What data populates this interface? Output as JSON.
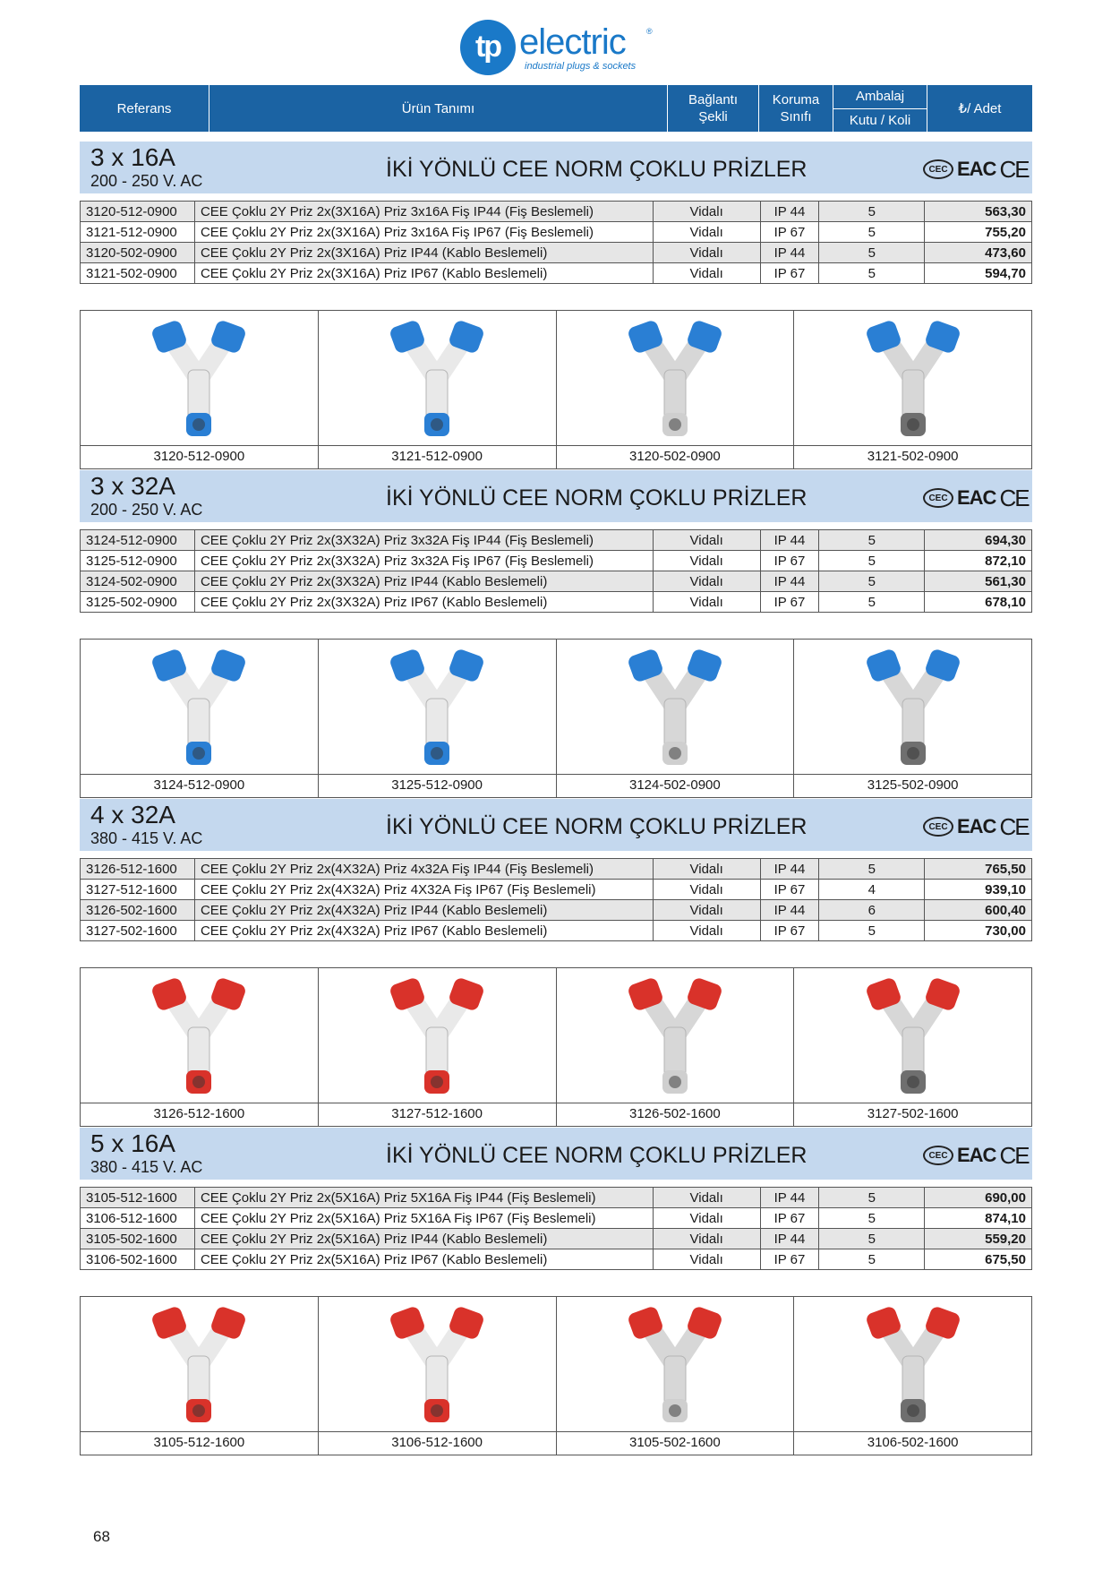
{
  "logo": {
    "mark": "tp",
    "word": "electric",
    "reg": "®",
    "tagline": "industrial plugs & sockets"
  },
  "header": {
    "referans": "Referans",
    "urun_tanimi": "Ürün Tanımı",
    "baglanti": "Bağlantı Şekli",
    "koruma": "Koruma Sınıfı",
    "ambalaj": "Ambalaj",
    "kutu_koli": "Kutu / Koli",
    "adet": "₺/ Adet"
  },
  "colors": {
    "header_blue": "#1b63a3",
    "band_blue": "#c4d8ee",
    "plug_blue": "#2a7fd4",
    "plug_red": "#d9322a"
  },
  "certs": {
    "cec": "CEC",
    "eac": "EAC",
    "ce": "CE"
  },
  "sections": [
    {
      "amp": "3 x 16A",
      "voltage": "200 - 250 V. AC",
      "title": "İKİ YÖNLÜ CEE NORM ÇOKLU PRİZLER",
      "color": "blue",
      "rows": [
        {
          "ref": "3120-512-0900",
          "desc": "CEE Çoklu 2Y Priz 2x(3X16A) Priz 3x16A Fiş IP44 (Fiş Beslemeli)",
          "baglanti": "Vidalı",
          "koruma": "IP 44",
          "ambalaj": "5",
          "price": "563,30"
        },
        {
          "ref": "3121-512-0900",
          "desc": "CEE Çoklu 2Y Priz 2x(3X16A) Priz 3x16A Fiş IP67 (Fiş Beslemeli)",
          "baglanti": "Vidalı",
          "koruma": "IP 67",
          "ambalaj": "5",
          "price": "755,20"
        },
        {
          "ref": "3120-502-0900",
          "desc": "CEE Çoklu 2Y Priz 2x(3X16A) Priz IP44 (Kablo Beslemeli)",
          "baglanti": "Vidalı",
          "koruma": "IP 44",
          "ambalaj": "5",
          "price": "473,60"
        },
        {
          "ref": "3121-502-0900",
          "desc": "CEE Çoklu 2Y Priz 2x(3X16A) Priz IP67 (Kablo Beslemeli)",
          "baglanti": "Vidalı",
          "koruma": "IP 67",
          "ambalaj": "5",
          "price": "594,70"
        }
      ],
      "images": [
        "3120-512-0900",
        "3121-512-0900",
        "3120-502-0900",
        "3121-502-0900"
      ]
    },
    {
      "amp": "3 x 32A",
      "voltage": "200 - 250 V. AC",
      "title": "İKİ YÖNLÜ CEE NORM ÇOKLU PRİZLER",
      "color": "blue",
      "rows": [
        {
          "ref": "3124-512-0900",
          "desc": "CEE Çoklu 2Y Priz 2x(3X32A) Priz 3x32A Fiş IP44 (Fiş Beslemeli)",
          "baglanti": "Vidalı",
          "koruma": "IP 44",
          "ambalaj": "5",
          "price": "694,30"
        },
        {
          "ref": "3125-512-0900",
          "desc": "CEE Çoklu 2Y Priz 2x(3X32A) Priz 3x32A Fiş IP67 (Fiş Beslemeli)",
          "baglanti": "Vidalı",
          "koruma": "IP 67",
          "ambalaj": "5",
          "price": "872,10"
        },
        {
          "ref": "3124-502-0900",
          "desc": "CEE Çoklu 2Y Priz 2x(3X32A) Priz IP44 (Kablo Beslemeli)",
          "baglanti": "Vidalı",
          "koruma": "IP 44",
          "ambalaj": "5",
          "price": "561,30"
        },
        {
          "ref": "3125-502-0900",
          "desc": "CEE Çoklu 2Y Priz 2x(3X32A) Priz IP67 (Kablo Beslemeli)",
          "baglanti": "Vidalı",
          "koruma": "IP 67",
          "ambalaj": "5",
          "price": "678,10"
        }
      ],
      "images": [
        "3124-512-0900",
        "3125-512-0900",
        "3124-502-0900",
        "3125-502-0900"
      ]
    },
    {
      "amp": "4 x 32A",
      "voltage": "380 - 415 V. AC",
      "title": "İKİ YÖNLÜ CEE NORM ÇOKLU PRİZLER",
      "color": "red",
      "rows": [
        {
          "ref": "3126-512-1600",
          "desc": "CEE Çoklu 2Y Priz 2x(4X32A) Priz 4x32A Fiş IP44 (Fiş Beslemeli)",
          "baglanti": "Vidalı",
          "koruma": "IP 44",
          "ambalaj": "5",
          "price": "765,50"
        },
        {
          "ref": "3127-512-1600",
          "desc": "CEE Çoklu 2Y Priz 2x(4X32A) Priz 4X32A Fiş IP67 (Fiş Beslemeli)",
          "baglanti": "Vidalı",
          "koruma": "IP 67",
          "ambalaj": "4",
          "price": "939,10"
        },
        {
          "ref": "3126-502-1600",
          "desc": "CEE Çoklu 2Y Priz 2x(4X32A) Priz IP44 (Kablo Beslemeli)",
          "baglanti": "Vidalı",
          "koruma": "IP 44",
          "ambalaj": "6",
          "price": "600,40"
        },
        {
          "ref": "3127-502-1600",
          "desc": "CEE Çoklu 2Y Priz 2x(4X32A) Priz IP67 (Kablo Beslemeli)",
          "baglanti": "Vidalı",
          "koruma": "IP 67",
          "ambalaj": "5",
          "price": "730,00"
        }
      ],
      "images": [
        "3126-512-1600",
        "3127-512-1600",
        "3126-502-1600",
        "3127-502-1600"
      ]
    },
    {
      "amp": "5 x 16A",
      "voltage": "380 - 415 V. AC",
      "title": "İKİ YÖNLÜ CEE NORM ÇOKLU PRİZLER",
      "color": "red",
      "rows": [
        {
          "ref": "3105-512-1600",
          "desc": "CEE Çoklu 2Y Priz 2x(5X16A) Priz 5X16A Fiş IP44 (Fiş Beslemeli)",
          "baglanti": "Vidalı",
          "koruma": "IP 44",
          "ambalaj": "5",
          "price": "690,00"
        },
        {
          "ref": "3106-512-1600",
          "desc": "CEE Çoklu 2Y Priz 2x(5X16A) Priz 5X16A Fiş IP67 (Fiş Beslemeli)",
          "baglanti": "Vidalı",
          "koruma": "IP 67",
          "ambalaj": "5",
          "price": "874,10"
        },
        {
          "ref": "3105-502-1600",
          "desc": "CEE Çoklu 2Y Priz 2x(5X16A) Priz IP44 (Kablo Beslemeli)",
          "baglanti": "Vidalı",
          "koruma": "IP 44",
          "ambalaj": "5",
          "price": "559,20"
        },
        {
          "ref": "3106-502-1600",
          "desc": "CEE Çoklu 2Y Priz 2x(5X16A) Priz IP67 (Kablo Beslemeli)",
          "baglanti": "Vidalı",
          "koruma": "IP 67",
          "ambalaj": "5",
          "price": "675,50"
        }
      ],
      "images": [
        "3105-512-1600",
        "3106-512-1600",
        "3105-502-1600",
        "3106-502-1600"
      ]
    }
  ],
  "page_number": "68"
}
